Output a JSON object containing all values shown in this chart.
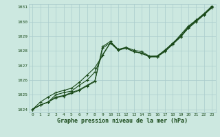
{
  "xlabel": "Graphe pression niveau de la mer (hPa)",
  "bg_color": "#cce8e0",
  "grid_color": "#aacccc",
  "line_color": "#1a4a1a",
  "x": [
    0,
    1,
    2,
    3,
    4,
    5,
    6,
    7,
    8,
    9,
    10,
    11,
    12,
    13,
    14,
    15,
    16,
    17,
    18,
    19,
    20,
    21,
    22,
    23
  ],
  "line1": [
    1024.0,
    1024.3,
    1024.5,
    1024.8,
    1024.9,
    1025.1,
    1025.3,
    1025.6,
    1025.9,
    1028.3,
    1028.65,
    1028.1,
    1028.25,
    1028.05,
    1027.95,
    1027.65,
    1027.65,
    1028.05,
    1028.55,
    1029.0,
    1029.65,
    1030.1,
    1030.55,
    1031.05
  ],
  "line2": [
    1024.0,
    1024.3,
    1024.5,
    1024.85,
    1024.95,
    1025.15,
    1025.35,
    1025.65,
    1025.95,
    1028.2,
    1028.55,
    1028.05,
    1028.2,
    1027.95,
    1027.85,
    1027.6,
    1027.6,
    1028.0,
    1028.5,
    1028.95,
    1029.6,
    1030.05,
    1030.5,
    1031.0
  ],
  "line3": [
    1024.0,
    1024.3,
    1024.5,
    1025.0,
    1025.15,
    1025.25,
    1025.65,
    1026.0,
    1026.55,
    1027.75,
    1028.55,
    1028.05,
    1028.2,
    1027.95,
    1027.85,
    1027.6,
    1027.6,
    1027.95,
    1028.45,
    1028.95,
    1029.55,
    1030.0,
    1030.45,
    1030.95
  ],
  "line4": [
    1024.0,
    1024.5,
    1024.85,
    1025.15,
    1025.3,
    1025.45,
    1025.85,
    1026.35,
    1026.85,
    1027.7,
    1028.55,
    1028.1,
    1028.2,
    1027.95,
    1027.85,
    1027.6,
    1027.65,
    1028.05,
    1028.5,
    1029.1,
    1029.7,
    1030.1,
    1030.5,
    1030.95
  ],
  "ylim": [
    1023.8,
    1031.2
  ],
  "yticks": [
    1024,
    1025,
    1026,
    1027,
    1028,
    1029,
    1030,
    1031
  ],
  "xticks": [
    0,
    1,
    2,
    3,
    4,
    5,
    6,
    7,
    8,
    9,
    10,
    11,
    12,
    13,
    14,
    15,
    16,
    17,
    18,
    19,
    20,
    21,
    22,
    23
  ]
}
